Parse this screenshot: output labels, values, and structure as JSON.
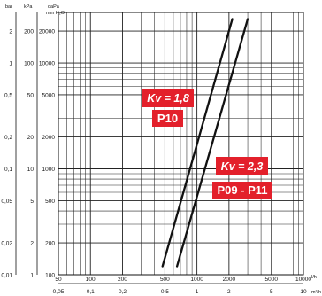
{
  "chart_data": {
    "type": "line",
    "title": "",
    "x": {
      "scale": "log",
      "range": [
        50,
        10000
      ],
      "grid": true,
      "primary_unit": "l/h",
      "primary_ticks": [
        {
          "label": "50",
          "value": 50
        },
        {
          "label": "100",
          "value": 100
        },
        {
          "label": "200",
          "value": 200
        },
        {
          "label": "500",
          "value": 500
        },
        {
          "label": "1000",
          "value": 1000
        },
        {
          "label": "2000",
          "value": 2000
        },
        {
          "label": "5000",
          "value": 5000
        },
        {
          "label": "10000",
          "value": 10000
        }
      ],
      "secondary_unit": "m³/h",
      "secondary_ticks": [
        {
          "label": "0,05",
          "value": 0.05
        },
        {
          "label": "0,1",
          "value": 0.1
        },
        {
          "label": "0,2",
          "value": 0.2
        },
        {
          "label": "0,5",
          "value": 0.5
        },
        {
          "label": "1",
          "value": 1
        },
        {
          "label": "2",
          "value": 2
        },
        {
          "label": "5",
          "value": 5
        },
        {
          "label": "10",
          "value": 10
        }
      ]
    },
    "y": {
      "scale": "log",
      "range": [
        100,
        30000
      ],
      "grid": true,
      "axis_units": {
        "bar": "bar",
        "kpa": "kPa",
        "mmh2o_top": "daPa",
        "mmh2o_bottom": "mm H₂O"
      },
      "bar_ticks": [
        {
          "label": "2",
          "value": 2
        },
        {
          "label": "1",
          "value": 1
        },
        {
          "label": "0,5",
          "value": 0.5
        },
        {
          "label": "0,2",
          "value": 0.2
        },
        {
          "label": "0,1",
          "value": 0.1
        },
        {
          "label": "0,05",
          "value": 0.05
        },
        {
          "label": "0,02",
          "value": 0.02
        },
        {
          "label": "0,01",
          "value": 0.01
        }
      ],
      "kpa_ticks": [
        {
          "label": "200",
          "value": 200
        },
        {
          "label": "100",
          "value": 100
        },
        {
          "label": "50",
          "value": 50
        },
        {
          "label": "20",
          "value": 20
        },
        {
          "label": "10",
          "value": 10
        },
        {
          "label": "5",
          "value": 5
        },
        {
          "label": "2",
          "value": 2
        },
        {
          "label": "1",
          "value": 1
        }
      ],
      "mmh2o_ticks": [
        {
          "label": "20000",
          "value": 20000
        },
        {
          "label": "10000",
          "value": 10000
        },
        {
          "label": "5000",
          "value": 5000
        },
        {
          "label": "2000",
          "value": 2000
        },
        {
          "label": "1000",
          "value": 1000
        },
        {
          "label": "500",
          "value": 500
        },
        {
          "label": "200",
          "value": 200
        },
        {
          "label": "100",
          "value": 100
        }
      ]
    },
    "series": [
      {
        "name": "Kv = 1,8",
        "model": "P10",
        "points": [
          [
            475,
            120
          ],
          [
            2150,
            26000
          ]
        ]
      },
      {
        "name": "Kv = 2,3",
        "model": "P09 - P11",
        "points": [
          [
            650,
            120
          ],
          [
            3000,
            26000
          ]
        ]
      }
    ],
    "callouts": [
      {
        "kv": "Kv = 1,8",
        "model": "P10",
        "series": 0
      },
      {
        "kv": "Kv = 2,3",
        "model": "P09 - P11",
        "series": 1
      }
    ],
    "colors": {
      "callout": "#e3202b",
      "line": "#111111",
      "grid": "#222222"
    }
  }
}
